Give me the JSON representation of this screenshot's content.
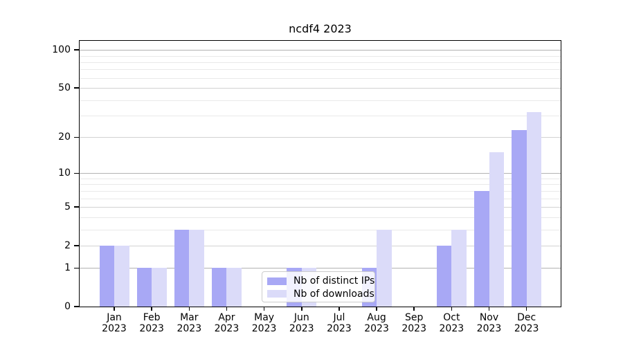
{
  "chart_data": {
    "type": "bar",
    "title": "ncdf4 2023",
    "categories": [
      "Jan 2023",
      "Feb 2023",
      "Mar 2023",
      "Apr 2023",
      "May 2023",
      "Jun 2023",
      "Jul 2023",
      "Aug 2023",
      "Sep 2023",
      "Oct 2023",
      "Nov 2023",
      "Dec 2023"
    ],
    "series": [
      {
        "name": "Nb of distinct IPs",
        "color": "#a8a8f5",
        "values": [
          2,
          1,
          3,
          1,
          0,
          1,
          0,
          1,
          0,
          2,
          7,
          23
        ]
      },
      {
        "name": "Nb of downloads",
        "color": "#dbdbf9",
        "values": [
          2,
          1,
          3,
          1,
          0,
          1,
          0,
          3,
          0,
          3,
          15,
          32
        ]
      }
    ],
    "xlabel": "",
    "ylabel": "",
    "yscale": "log1p",
    "ylim": [
      0,
      118
    ],
    "y_ticks": [
      0,
      1,
      2,
      5,
      10,
      20,
      50,
      100
    ],
    "y_decade_ticks": [
      1,
      10,
      100
    ],
    "y_minor_ticks": [
      3,
      4,
      6,
      7,
      8,
      9,
      30,
      40,
      60,
      70,
      80,
      90
    ],
    "grid": "horizontal",
    "legend": {
      "position": "inside-bottom-center"
    }
  }
}
